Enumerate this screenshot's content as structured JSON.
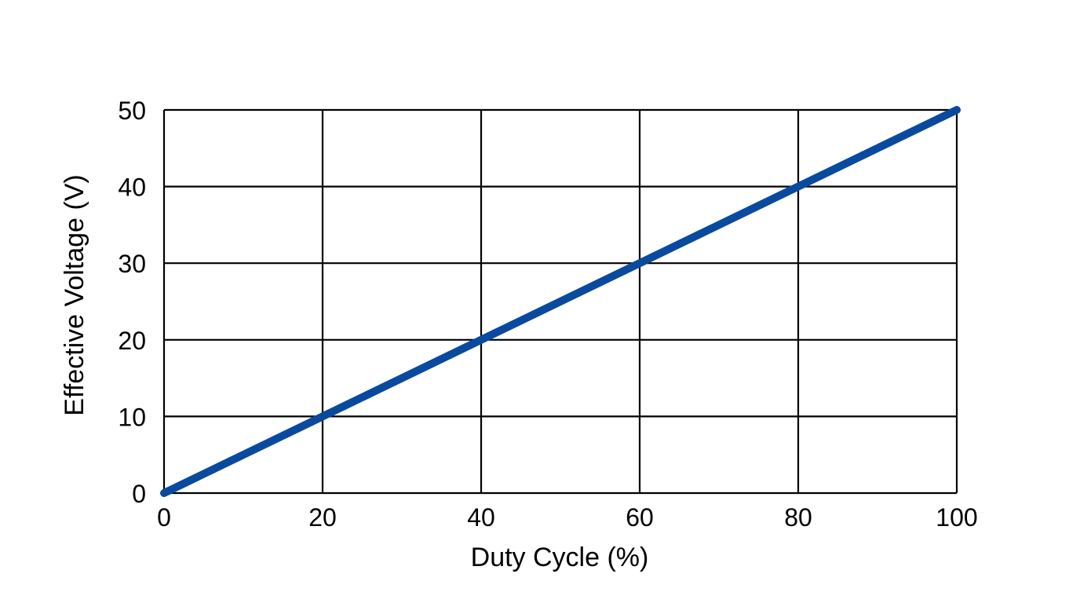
{
  "chart_data": {
    "type": "line",
    "title": "",
    "xlabel": "Duty Cycle (%)",
    "ylabel": "Effective Voltage (V)",
    "xlim": [
      0,
      100
    ],
    "ylim": [
      0,
      50
    ],
    "x_ticks": [
      0,
      20,
      40,
      60,
      80,
      100
    ],
    "y_ticks": [
      0,
      10,
      20,
      30,
      40,
      50
    ],
    "x_tick_labels": [
      "0",
      "20",
      "40",
      "60",
      "80",
      "100"
    ],
    "y_tick_labels": [
      "0",
      "10",
      "20",
      "30",
      "40",
      "50"
    ],
    "grid": true,
    "legend": "none",
    "series": [
      {
        "color": "#0a4a9e",
        "x": [
          0,
          100
        ],
        "y": [
          0,
          50
        ]
      }
    ]
  }
}
